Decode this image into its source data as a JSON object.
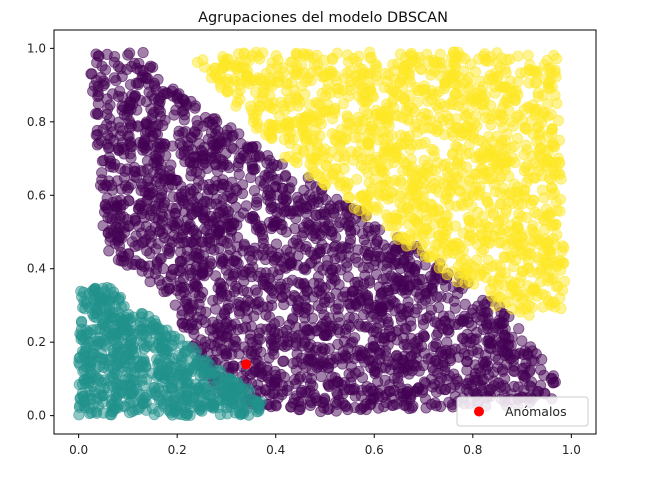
{
  "chart_data": {
    "type": "scatter",
    "title": "Agrupaciones del modelo DBSCAN",
    "xlabel": "",
    "ylabel": "",
    "xlim": [
      -0.05,
      1.05
    ],
    "ylim": [
      -0.05,
      1.05
    ],
    "xticks": [
      "0.0",
      "0.2",
      "0.4",
      "0.6",
      "0.8",
      "1.0"
    ],
    "yticks": [
      "0.0",
      "0.2",
      "0.4",
      "0.6",
      "0.8",
      "1.0"
    ],
    "grid": false,
    "legend_position": "bottom-right",
    "series": [
      {
        "name": "",
        "color": "#fde725",
        "opacity": 0.5,
        "region": {
          "shape": "polygon",
          "vertices": [
            [
              0.22,
              0.99
            ],
            [
              0.97,
              0.99
            ],
            [
              0.99,
              0.27
            ],
            [
              0.88,
              0.27
            ],
            [
              0.76,
              0.37
            ],
            [
              0.4,
              0.72
            ]
          ]
        }
      },
      {
        "name": "",
        "color": "#440154",
        "opacity": 0.5,
        "region": {
          "shape": "polygon",
          "vertices": [
            [
              0.02,
              0.99
            ],
            [
              0.14,
              0.99
            ],
            [
              0.18,
              0.9
            ],
            [
              0.38,
              0.72
            ],
            [
              0.76,
              0.4
            ],
            [
              0.87,
              0.28
            ],
            [
              0.97,
              0.1
            ],
            [
              0.97,
              0.03
            ],
            [
              0.47,
              0.01
            ],
            [
              0.28,
              0.04
            ],
            [
              0.18,
              0.33
            ],
            [
              0.05,
              0.45
            ],
            [
              0.04,
              0.7
            ]
          ]
        }
      },
      {
        "name": "",
        "color": "#21918c",
        "opacity": 0.5,
        "region": {
          "shape": "polygon",
          "vertices": [
            [
              0.0,
              0.35
            ],
            [
              0.06,
              0.35
            ],
            [
              0.37,
              0.05
            ],
            [
              0.37,
              0.0
            ],
            [
              0.0,
              0.0
            ]
          ]
        }
      },
      {
        "name": "Anómalos",
        "color": "#ff0000",
        "opacity": 1.0,
        "points": [
          [
            0.34,
            0.14
          ]
        ]
      }
    ]
  }
}
